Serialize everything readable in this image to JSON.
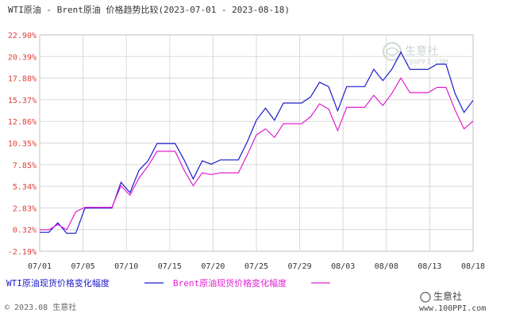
{
  "colors": {
    "wti": "#1a1acc",
    "brent": "#e020d0",
    "tick_red": "#e0403a",
    "grid": "#d9d9d9"
  },
  "footer": {
    "copyright": "© 2023.08 生意社"
  },
  "watermark": {
    "name": "生意社",
    "url": "100PPI.COM"
  },
  "logo": {
    "name": "生意社",
    "url": "www.100PPI.com"
  },
  "chart_data": {
    "type": "line",
    "title": "WTI原油 - Brent原油 价格趋势比较(2023-07-01 - 2023-08-18)",
    "ylabel": "",
    "xlabel": "",
    "ylim": [
      -2.19,
      22.9
    ],
    "y_ticks": [
      "22.90%",
      "20.39%",
      "17.88%",
      "15.37%",
      "12.86%",
      "10.35%",
      "7.85%",
      "5.34%",
      "2.83%",
      "0.32%",
      "-2.19%"
    ],
    "x_ticks": [
      "07/01",
      "07/05",
      "07/10",
      "07/15",
      "07/20",
      "07/25",
      "07/29",
      "08/03",
      "08/08",
      "08/13",
      "08/18"
    ],
    "grid": true,
    "legend_position": "bottom",
    "x": [
      "07/01",
      "07/02",
      "07/03",
      "07/04",
      "07/05",
      "07/06",
      "07/07",
      "07/08",
      "07/09",
      "07/10",
      "07/11",
      "07/12",
      "07/13",
      "07/14",
      "07/15",
      "07/16",
      "07/17",
      "07/18",
      "07/19",
      "07/20",
      "07/21",
      "07/22",
      "07/23",
      "07/24",
      "07/25",
      "07/26",
      "07/27",
      "07/28",
      "07/29",
      "07/30",
      "07/31",
      "08/01",
      "08/02",
      "08/03",
      "08/04",
      "08/05",
      "08/06",
      "08/07",
      "08/08",
      "08/09",
      "08/10",
      "08/11",
      "08/12",
      "08/13",
      "08/14",
      "08/15",
      "08/16",
      "08/17",
      "08/18"
    ],
    "series": [
      {
        "name": "WTI原油现货价格变化幅度",
        "color": "#1a1acc",
        "values": [
          0.0,
          0.0,
          1.1,
          -0.1,
          -0.1,
          2.8,
          2.8,
          2.8,
          2.8,
          5.8,
          4.6,
          7.2,
          8.3,
          10.3,
          10.3,
          10.3,
          8.4,
          6.2,
          8.3,
          7.9,
          8.4,
          8.4,
          8.4,
          10.5,
          13.0,
          14.4,
          13.0,
          15.0,
          15.0,
          15.0,
          15.7,
          17.4,
          16.9,
          14.1,
          16.9,
          16.9,
          16.9,
          18.9,
          17.6,
          18.9,
          20.9,
          18.9,
          18.9,
          18.9,
          19.5,
          19.5,
          16.1,
          13.9,
          15.3
        ]
      },
      {
        "name": "Brent原油现货价格变化幅度",
        "color": "#e020d0",
        "values": [
          0.3,
          0.3,
          0.9,
          0.3,
          2.4,
          2.9,
          2.9,
          2.9,
          2.9,
          5.4,
          4.3,
          6.3,
          7.7,
          9.4,
          9.4,
          9.4,
          7.2,
          5.4,
          6.9,
          6.7,
          6.9,
          6.9,
          6.9,
          9.0,
          11.3,
          12.0,
          11.0,
          12.6,
          12.6,
          12.6,
          13.4,
          14.9,
          14.3,
          11.8,
          14.5,
          14.5,
          14.5,
          15.9,
          14.7,
          16.1,
          17.9,
          16.2,
          16.2,
          16.2,
          16.8,
          16.8,
          14.2,
          12.0,
          12.9
        ]
      }
    ]
  }
}
